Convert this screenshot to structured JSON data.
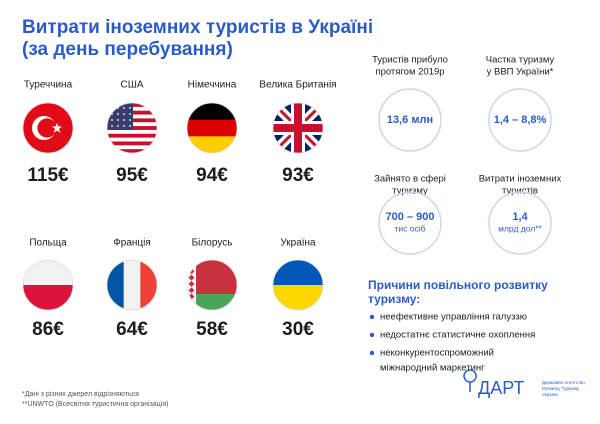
{
  "header": {
    "title": [
      "Витрати іноземних туристів в Україні",
      "(за день перебування)"
    ]
  },
  "countries": [
    {
      "name": "Туреччина",
      "spending": "115€"
    },
    {
      "name": "США",
      "spending": "95€"
    },
    {
      "name": "Німеччина",
      "spending": "94€"
    },
    {
      "name": "Велика Британія",
      "spending": "93€"
    },
    {
      "name": "Польща",
      "spending": "86€"
    },
    {
      "name": "Франція",
      "spending": "64€"
    },
    {
      "name": "Білорусь",
      "spending": "58€"
    },
    {
      "name": "Україна",
      "spending": "30€"
    }
  ],
  "stats": [
    {
      "label": [
        "Туристів прибуло",
        "протягом 2019р"
      ],
      "value": [
        "13,6 млн"
      ]
    },
    {
      "label": [
        "Частка туризму",
        "у ВВП України*"
      ],
      "value": [
        "1,4 – 8,8%"
      ]
    },
    {
      "label": [
        "Зайнято в сфері",
        "туризму"
      ],
      "value": [
        "700 – 900",
        "тис осіб"
      ]
    },
    {
      "label": [
        "Витрати іноземних",
        "туристів"
      ],
      "value": [
        "1,4",
        "млрд дол**"
      ]
    }
  ],
  "reasons": {
    "title": [
      "Причини повільного розвитку",
      "туризму:"
    ],
    "items": [
      [
        "неефективне управління галуззю"
      ],
      [
        "недостатнє статистичне охоплення"
      ],
      [
        "неконкурентоспроможний",
        "міжнародний маркетинг"
      ]
    ]
  },
  "footnotes": [
    "*Дані з різних джерел відрізняються",
    "**UNWTO (Всесвітня туристична організація)"
  ],
  "logo": {
    "name": "ДАРТ",
    "subtitle": [
      "Державне Агентство",
      "Розвитку Туризму",
      "України"
    ]
  }
}
